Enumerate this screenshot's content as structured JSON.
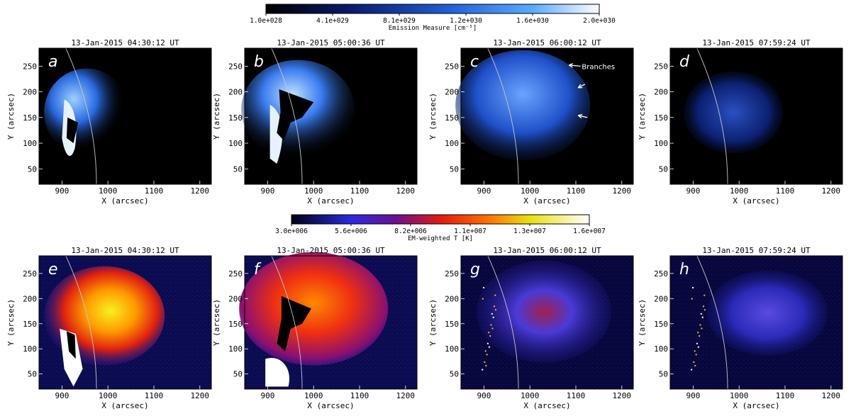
{
  "colorbars": [
    {
      "ticks": [
        "1.0e+028",
        "4.1e+029",
        "8.1e+029",
        "1.2e+030",
        "1.6e+030",
        "2.0e+030"
      ],
      "label": "Emission Measure [cm⁻⁵]"
    },
    {
      "ticks": [
        "3.0e+006",
        "5.6e+006",
        "8.2e+006",
        "1.1e+007",
        "1.3e+007",
        "1.6e+007"
      ],
      "label": "EM-weighted T [K]"
    }
  ],
  "axes": {
    "xlabel": "X (arcsec)",
    "ylabel": "Y (arcsec)",
    "xticks": [
      "900",
      "1000",
      "1100",
      "1200"
    ],
    "yticks": [
      "50",
      "100",
      "150",
      "200",
      "250"
    ]
  },
  "panels": [
    {
      "letter": "a",
      "time": "13-Jan-2015 04:30:12 UT",
      "kind": "em"
    },
    {
      "letter": "b",
      "time": "13-Jan-2015 05:00:36 UT",
      "kind": "em"
    },
    {
      "letter": "c",
      "time": "13-Jan-2015 06:00:12 UT",
      "kind": "em"
    },
    {
      "letter": "d",
      "time": "13-Jan-2015 07:59:24 UT",
      "kind": "em"
    },
    {
      "letter": "e",
      "time": "13-Jan-2015 04:30:12 UT",
      "kind": "temp"
    },
    {
      "letter": "f",
      "time": "13-Jan-2015 05:00:36 UT",
      "kind": "temp"
    },
    {
      "letter": "g",
      "time": "13-Jan-2015 06:00:12 UT",
      "kind": "temp"
    },
    {
      "letter": "h",
      "time": "13-Jan-2015 07:59:24 UT",
      "kind": "temp"
    }
  ],
  "annotation": {
    "text": "Branches"
  },
  "colors": {
    "em_colormap": [
      "#000000",
      "#0a1a6a",
      "#1f5fd6",
      "#4aa0ff",
      "#bfe0ff",
      "#ffffff"
    ],
    "temp_colormap": [
      "#000018",
      "#2a2ae0",
      "#9a1060",
      "#ff2a00",
      "#ffd000",
      "#ffffff"
    ]
  }
}
